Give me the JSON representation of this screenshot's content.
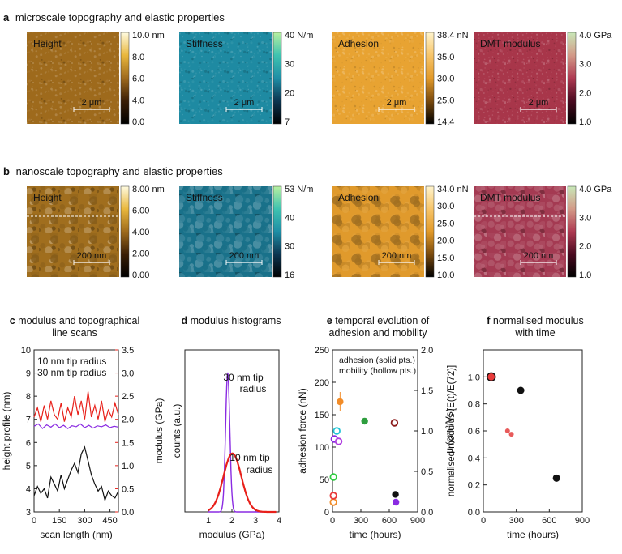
{
  "headers": {
    "a": {
      "letter": "a",
      "text": "microscale topography and elastic properties"
    },
    "b": {
      "letter": "b",
      "text": "nanoscale topography and elastic properties"
    }
  },
  "maps_a": [
    {
      "label": "Height",
      "scalebar": "2 μm",
      "color": "#9e6a1c",
      "ticks": [
        "10.0 nm",
        "8.0",
        "6.0",
        "4.0",
        "0.0"
      ],
      "cb": [
        "#fffbe0",
        "#e9b73d",
        "#9e6a1c",
        "#3a1e05",
        "#000000"
      ]
    },
    {
      "label": "Stiffness",
      "scalebar": "2 μm",
      "color": "#1e8aa2",
      "ticks": [
        "40 N/m",
        "30",
        "20",
        "7"
      ],
      "cb": [
        "#b8f0a0",
        "#3fc3b0",
        "#1f8ea6",
        "#0d3550",
        "#000000"
      ]
    },
    {
      "label": "Adhesion",
      "scalebar": "2 μm",
      "color": "#e8a332",
      "ticks": [
        "38.4 nN",
        "35.0",
        "30.0",
        "25.0",
        "14.4"
      ],
      "cb": [
        "#fff4cc",
        "#f7c56a",
        "#e29a2a",
        "#7a4a0e",
        "#000000"
      ]
    },
    {
      "label": "DMT modulus",
      "scalebar": "2 μm",
      "color": "#a8364a",
      "ticks": [
        "4.0 GPa",
        "3.0",
        "2.0",
        "1.0"
      ],
      "cb": [
        "#c8e8b8",
        "#d39a88",
        "#ae3a52",
        "#4a0a20",
        "#000000"
      ]
    }
  ],
  "maps_b": [
    {
      "label": "Height",
      "scalebar": "200 nm",
      "color": "#a06e1e",
      "ticks": [
        "8.00 nm",
        "6.00",
        "4.00",
        "2.00",
        "0.00"
      ],
      "cb": [
        "#fffbe0",
        "#e9b73d",
        "#9e6a1c",
        "#3a1e05",
        "#000000"
      ]
    },
    {
      "label": "Stiffness",
      "scalebar": "200 nm",
      "color": "#19718a",
      "ticks": [
        "53 N/m",
        "40",
        "30",
        "16"
      ],
      "cb": [
        "#b8f0a0",
        "#3fc3b0",
        "#1f8ea6",
        "#0d3550",
        "#000000"
      ]
    },
    {
      "label": "Adhesion",
      "scalebar": "200 nm",
      "color": "#e09a2c",
      "ticks": [
        "34.0 nN",
        "30.0",
        "25.0",
        "20.0",
        "15.0",
        "10.0"
      ],
      "cb": [
        "#fff4cc",
        "#f7c56a",
        "#e29a2a",
        "#7a4a0e",
        "#000000"
      ]
    },
    {
      "label": "DMT modulus",
      "scalebar": "200 nm",
      "color": "#a43a52",
      "ticks": [
        "4.0 GPa",
        "3.0",
        "2.0",
        "1.0"
      ],
      "cb": [
        "#c8e8b8",
        "#d39a88",
        "#ae3a52",
        "#4a0a20",
        "#000000"
      ]
    }
  ],
  "chart_data": [
    {
      "type": "line",
      "panel": "c",
      "title": [
        "modulus and topographical",
        "line scans"
      ],
      "xlabel": "scan length (nm)",
      "ylabel": "height profile (nm)",
      "ylabel_right": "modulus (GPa)",
      "xlim": [
        0,
        500
      ],
      "ylim": [
        3,
        10
      ],
      "ylim_right": [
        0,
        3.5
      ],
      "xticks": [
        "0",
        "150",
        "300",
        "450"
      ],
      "yticks": [
        "3",
        "4",
        "5",
        "6",
        "7",
        "8",
        "9",
        "10"
      ],
      "yticks_right": [
        "0.0",
        "0.5",
        "1.0",
        "1.5",
        "2.0",
        "2.5",
        "3.0",
        "3.5"
      ],
      "legend": [
        "10 nm tip radius",
        "30 nm tip radius"
      ],
      "series": [
        {
          "name": "10 nm tip radius",
          "axis": "right",
          "color": "#e8201a",
          "x": [
            0,
            20,
            40,
            60,
            80,
            100,
            120,
            140,
            160,
            180,
            200,
            220,
            240,
            260,
            280,
            300,
            320,
            340,
            360,
            380,
            400,
            420,
            440,
            460,
            480,
            500
          ],
          "y": [
            2.05,
            2.25,
            1.95,
            2.3,
            2.0,
            2.4,
            2.1,
            2.0,
            2.35,
            1.95,
            2.25,
            2.05,
            2.5,
            2.1,
            2.4,
            2.0,
            2.6,
            2.05,
            2.3,
            2.0,
            2.4,
            1.95,
            2.2,
            2.05,
            2.35,
            2.1
          ]
        },
        {
          "name": "30 nm tip radius",
          "axis": "right",
          "color": "#8a2be2",
          "x": [
            0,
            25,
            50,
            75,
            100,
            125,
            150,
            175,
            200,
            225,
            250,
            275,
            300,
            325,
            350,
            375,
            400,
            425,
            450,
            475,
            500
          ],
          "y": [
            1.85,
            1.9,
            1.8,
            1.88,
            1.83,
            1.9,
            1.82,
            1.87,
            1.8,
            1.86,
            1.84,
            1.9,
            1.82,
            1.87,
            1.81,
            1.86,
            1.84,
            1.88,
            1.82,
            1.85,
            1.83
          ]
        },
        {
          "name": "height",
          "axis": "left",
          "color": "#111111",
          "x": [
            0,
            20,
            40,
            60,
            80,
            100,
            120,
            140,
            160,
            180,
            200,
            220,
            240,
            260,
            280,
            300,
            320,
            340,
            360,
            380,
            400,
            420,
            440,
            460,
            480,
            500
          ],
          "y": [
            3.7,
            4.1,
            3.8,
            4.0,
            3.6,
            4.5,
            4.2,
            3.9,
            4.6,
            4.0,
            4.4,
            4.8,
            5.1,
            4.7,
            5.5,
            5.8,
            5.2,
            4.6,
            4.2,
            3.9,
            4.1,
            3.5,
            3.9,
            3.7,
            3.6,
            3.9
          ]
        }
      ]
    },
    {
      "type": "line",
      "panel": "d",
      "title": [
        "modulus histograms"
      ],
      "xlabel": "modulus (GPa)",
      "ylabel": "counts (a.u.)",
      "xlim": [
        0,
        4
      ],
      "xticks": [
        "1",
        "2",
        "3",
        "4"
      ],
      "annotations": [
        {
          "lines": [
            "30 nm tip",
            "radius"
          ],
          "color": "#8a2be2"
        },
        {
          "lines": [
            "10 nm tip",
            "radius"
          ],
          "color": "#e8201a"
        }
      ],
      "series": [
        {
          "name": "30 nm tip radius",
          "color": "#8a2be2",
          "mean": 1.82,
          "sd": 0.09,
          "peak": 1.0
        },
        {
          "name": "10 nm tip radius",
          "color": "#e8201a",
          "mean": 2.02,
          "sd": 0.38,
          "peak": 0.42
        }
      ]
    },
    {
      "type": "scatter",
      "panel": "e",
      "title": [
        "temporal evolution of",
        "adhesion and mobility"
      ],
      "xlabel": "time (hours)",
      "ylabel": "adhesion force (nN)",
      "ylabel_right": "μ (cm²/Vs)",
      "xlim": [
        0,
        900
      ],
      "ylim": [
        0,
        250
      ],
      "ylim_right": [
        0,
        2
      ],
      "xticks": [
        "0",
        "300",
        "600",
        "900"
      ],
      "yticks": [
        "0",
        "50",
        "100",
        "150",
        "200",
        "250"
      ],
      "yticks_right": [
        "0.0",
        "0.5",
        "1.0",
        "1.5",
        "2.0"
      ],
      "legend": [
        "adhesion (solid pts.)",
        "mobility (hollow pts.)"
      ],
      "adhesion": [
        {
          "x": 80,
          "y": 170,
          "color": "#f28c28",
          "err": 15
        },
        {
          "x": 340,
          "y": 140,
          "color": "#2e9e3e"
        },
        {
          "x": 665,
          "y": 27,
          "color": "#111111"
        },
        {
          "x": 670,
          "y": 15,
          "color": "#8a2be2"
        }
      ],
      "mobility": [
        {
          "x": 10,
          "y": 0.12,
          "color": "#f28c28"
        },
        {
          "x": 10,
          "y": 0.2,
          "color": "#e83a3a"
        },
        {
          "x": 10,
          "y": 0.43,
          "color": "#2ecc40"
        },
        {
          "x": 20,
          "y": 0.9,
          "color": "#8a2be2"
        },
        {
          "x": 45,
          "y": 1.0,
          "color": "#22c5d6"
        },
        {
          "x": 65,
          "y": 0.87,
          "color": "#b040e0"
        },
        {
          "x": 655,
          "y": 1.1,
          "color": "#8b1a1a"
        }
      ]
    },
    {
      "type": "scatter",
      "panel": "f",
      "title": [
        "normalised modulus",
        "with time"
      ],
      "xlabel": "time (hours)",
      "ylabel": "normalised modulus [E(t)/E(72)]",
      "xlim": [
        0,
        900
      ],
      "ylim": [
        0,
        1.2
      ],
      "xticks": [
        "0",
        "300",
        "600",
        "900"
      ],
      "yticks": [
        "0.0",
        "0.2",
        "0.4",
        "0.6",
        "0.8",
        "1.0"
      ],
      "points": [
        {
          "x": 72,
          "y": 1.0,
          "color": "#e83a3a",
          "size": 5,
          "edge": "#111111"
        },
        {
          "x": 340,
          "y": 0.9,
          "color": "#111111",
          "size": 4.5
        },
        {
          "x": 220,
          "y": 0.6,
          "color": "#e85a5a",
          "size": 3
        },
        {
          "x": 255,
          "y": 0.575,
          "color": "#e85a5a",
          "size": 3
        },
        {
          "x": 665,
          "y": 0.25,
          "color": "#111111",
          "size": 4.5
        }
      ]
    }
  ]
}
